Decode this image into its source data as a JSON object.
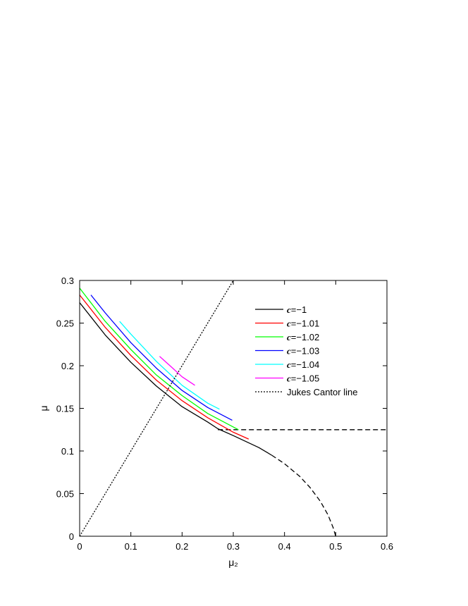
{
  "chart_data": {
    "type": "line",
    "title": "",
    "xlabel": "μ₂",
    "ylabel": "μ",
    "xlim": [
      0,
      0.6
    ],
    "ylim": [
      0,
      0.3
    ],
    "xticks": [
      0,
      0.1,
      0.2,
      0.3,
      0.4,
      0.5,
      0.6
    ],
    "yticks": [
      0,
      0.05,
      0.1,
      0.15,
      0.2,
      0.25,
      0.3
    ],
    "xtick_labels": [
      "0",
      "0.1",
      "0.2",
      "0.3",
      "0.4",
      "0.5",
      "0.6"
    ],
    "ytick_labels": [
      "0",
      "0.05",
      "0.1",
      "0.15",
      "0.2",
      "0.25",
      "0.3"
    ],
    "grid": false,
    "legend_position": "top-right",
    "series": [
      {
        "name": "c=−1",
        "label_var": "c",
        "label_val": "=−1",
        "color": "#000000",
        "dash": "solid",
        "x": [
          0,
          0.05,
          0.1,
          0.15,
          0.2,
          0.25,
          0.27,
          0.3,
          0.35,
          0.375
        ],
        "y": [
          0.274,
          0.236,
          0.204,
          0.176,
          0.152,
          0.134,
          0.126,
          0.118,
          0.104,
          0.095
        ]
      },
      {
        "name": "",
        "color": "#000000",
        "dash": "dashed",
        "x": [
          0.375,
          0.4,
          0.43,
          0.45,
          0.47,
          0.485,
          0.495,
          0.5
        ],
        "y": [
          0.095,
          0.085,
          0.07,
          0.057,
          0.041,
          0.025,
          0.01,
          0.0
        ]
      },
      {
        "name": "",
        "color": "#000000",
        "dash": "dashed",
        "x": [
          0.27,
          0.6
        ],
        "y": [
          0.125,
          0.125
        ]
      },
      {
        "name": "c=−1.01",
        "label_var": "c",
        "label_val": "=−1.01",
        "color": "#ff0000",
        "dash": "solid",
        "x": [
          0,
          0.05,
          0.1,
          0.15,
          0.2,
          0.25,
          0.3,
          0.33
        ],
        "y": [
          0.283,
          0.245,
          0.212,
          0.183,
          0.159,
          0.139,
          0.122,
          0.114
        ]
      },
      {
        "name": "c=−1.02",
        "label_var": "c",
        "label_val": "=−1.02",
        "color": "#00ff00",
        "dash": "solid",
        "x": [
          0,
          0.05,
          0.1,
          0.15,
          0.2,
          0.25,
          0.31
        ],
        "y": [
          0.291,
          0.252,
          0.219,
          0.189,
          0.165,
          0.144,
          0.125
        ]
      },
      {
        "name": "c=−1.03",
        "label_var": "c",
        "label_val": "=−1.03",
        "color": "#0000ff",
        "dash": "solid",
        "x": [
          0.022,
          0.05,
          0.1,
          0.15,
          0.2,
          0.25,
          0.298
        ],
        "y": [
          0.283,
          0.262,
          0.227,
          0.197,
          0.171,
          0.151,
          0.136
        ]
      },
      {
        "name": "c=−1.04",
        "label_var": "c",
        "label_val": "=−1.04",
        "color": "#00ffff",
        "dash": "solid",
        "x": [
          0.078,
          0.1,
          0.15,
          0.2,
          0.25,
          0.273
        ],
        "y": [
          0.252,
          0.237,
          0.205,
          0.177,
          0.156,
          0.149
        ]
      },
      {
        "name": "c=−1.05",
        "label_var": "c",
        "label_val": "=−1.05",
        "color": "#ff00ff",
        "dash": "solid",
        "x": [
          0.156,
          0.18,
          0.2,
          0.225
        ],
        "y": [
          0.211,
          0.198,
          0.187,
          0.177
        ]
      },
      {
        "name": "Jukes Cantor line",
        "label_var": "",
        "label_val": "Jukes Cantor line",
        "color": "#000000",
        "dash": "dotted",
        "x": [
          0,
          0.3
        ],
        "y": [
          0,
          0.3
        ]
      }
    ]
  }
}
